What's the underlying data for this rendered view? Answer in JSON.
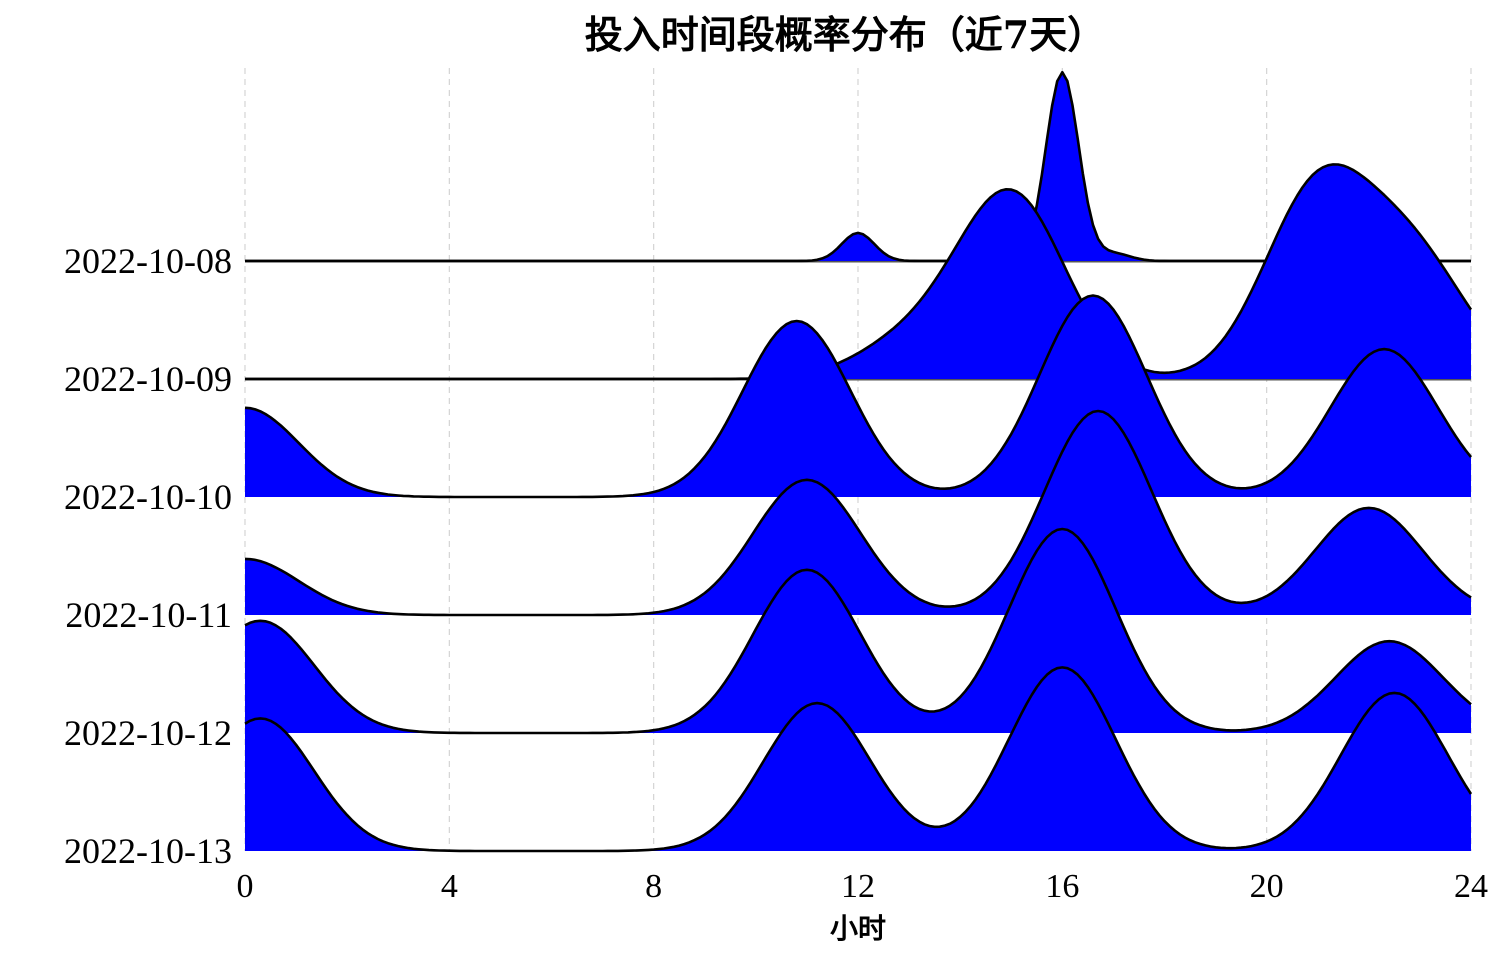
{
  "chart_data": {
    "type": "area",
    "kind": "ridgeline",
    "title": "投入时间段概率分布（近7天）",
    "xlabel": "小时",
    "ylabel": "",
    "xlim": [
      0,
      24
    ],
    "xticks": [
      0,
      4,
      8,
      12,
      16,
      20,
      24
    ],
    "grid": "vertical-dashed",
    "fill_color": "#0000ff",
    "line_color": "#000000",
    "series": [
      {
        "name": "2022-10-08",
        "peaks": [
          {
            "hour": 12.0,
            "height": 0.11
          },
          {
            "hour": 16.0,
            "height": 0.74
          },
          {
            "hour": 17.0,
            "height": 0.03
          }
        ]
      },
      {
        "name": "2022-10-09",
        "peaks": [
          {
            "hour": 13.0,
            "height": 0.14
          },
          {
            "hour": 15.0,
            "height": 0.72
          },
          {
            "hour": 21.0,
            "height": 0.73
          },
          {
            "hour": 22.9,
            "height": 0.45
          }
        ]
      },
      {
        "name": "2022-10-10",
        "peaks": [
          {
            "hour": 0.0,
            "height": 0.35
          },
          {
            "hour": 10.8,
            "height": 0.69
          },
          {
            "hour": 16.6,
            "height": 0.79
          },
          {
            "hour": 22.3,
            "height": 0.58
          }
        ]
      },
      {
        "name": "2022-10-11",
        "peaks": [
          {
            "hour": 0.0,
            "height": 0.22
          },
          {
            "hour": 11.0,
            "height": 0.53
          },
          {
            "hour": 16.7,
            "height": 0.8
          },
          {
            "hour": 22.0,
            "height": 0.42
          }
        ]
      },
      {
        "name": "2022-10-12",
        "peaks": [
          {
            "hour": 0.3,
            "height": 0.44
          },
          {
            "hour": 11.0,
            "height": 0.64
          },
          {
            "hour": 16.0,
            "height": 0.8
          },
          {
            "hour": 22.4,
            "height": 0.36
          }
        ]
      },
      {
        "name": "2022-10-13",
        "peaks": [
          {
            "hour": 0.3,
            "height": 0.52
          },
          {
            "hour": 11.2,
            "height": 0.58
          },
          {
            "hour": 16.0,
            "height": 0.72
          },
          {
            "hour": 22.5,
            "height": 0.62
          }
        ]
      }
    ]
  }
}
